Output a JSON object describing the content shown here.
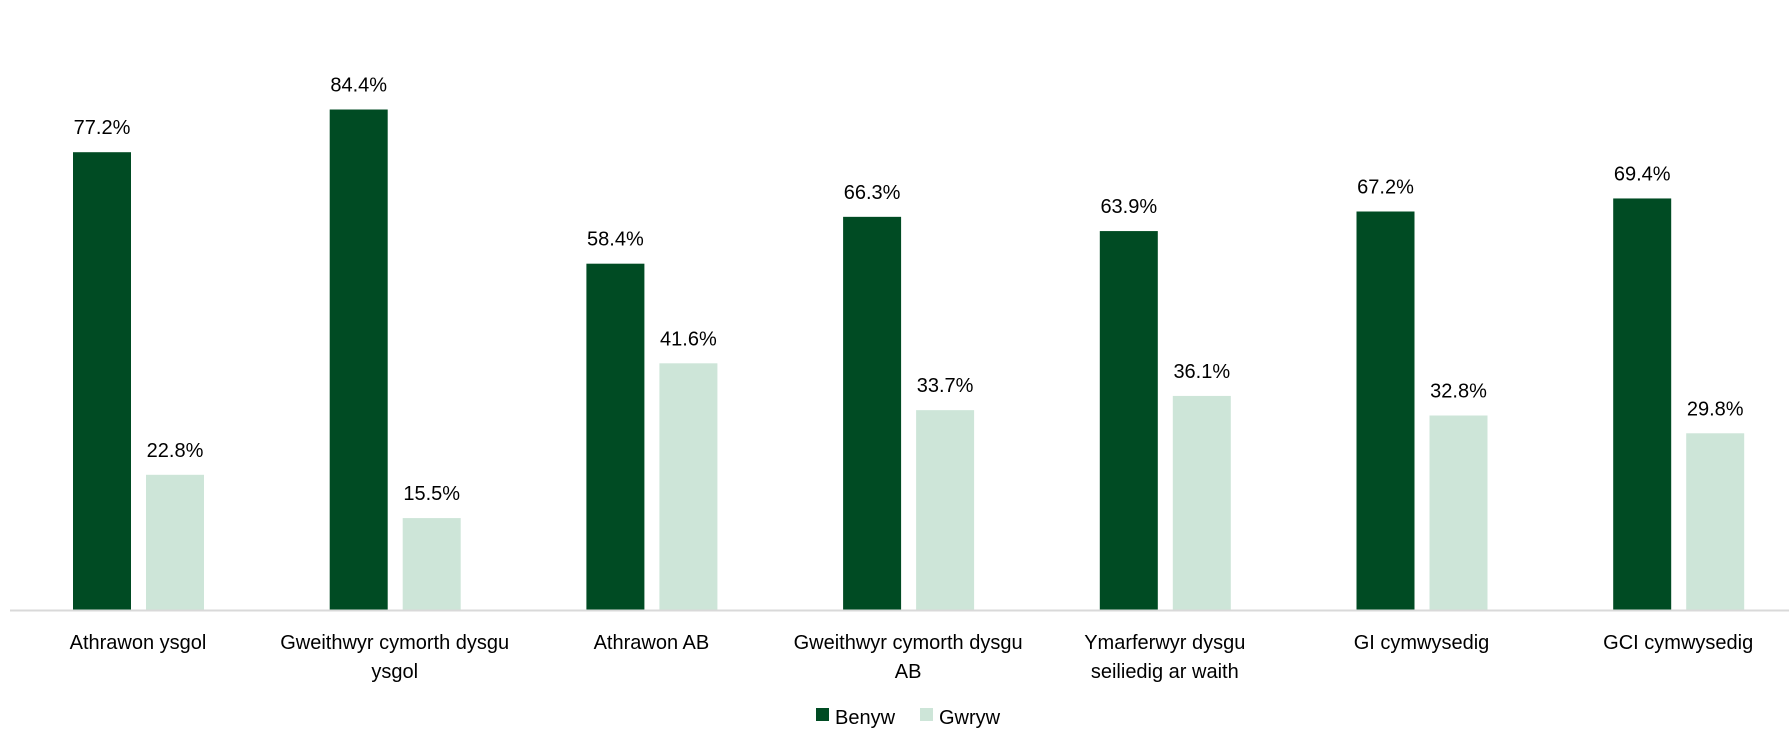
{
  "chart_data": {
    "type": "bar",
    "categories": [
      [
        "Athrawon ysgol"
      ],
      [
        "Gweithwyr cymorth dysgu",
        "ysgol"
      ],
      [
        "Athrawon AB"
      ],
      [
        "Gweithwyr cymorth dysgu",
        "AB"
      ],
      [
        "Ymarferwyr dysgu",
        "seiliedig ar waith"
      ],
      [
        "GI cymwysedig"
      ],
      [
        "GCI cymwysedig"
      ]
    ],
    "series": [
      {
        "name": "Benyw",
        "color": "#004b23",
        "values": [
          77.2,
          84.4,
          58.4,
          66.3,
          63.9,
          67.2,
          69.4
        ],
        "labels": [
          "77.2%",
          "84.4%",
          "58.4%",
          "66.3%",
          "63.9%",
          "67.2%",
          "69.4%"
        ]
      },
      {
        "name": "Gwryw",
        "color": "#cde5d8",
        "values": [
          22.8,
          15.5,
          41.6,
          33.7,
          36.1,
          32.8,
          29.8
        ],
        "labels": [
          "22.8%",
          "15.5%",
          "41.6%",
          "33.7%",
          "36.1%",
          "32.8%",
          "29.8%"
        ]
      }
    ],
    "ylim": [
      0,
      100
    ],
    "grid": false,
    "legend_position": "bottom",
    "axis_color": "#d9d9d9"
  }
}
